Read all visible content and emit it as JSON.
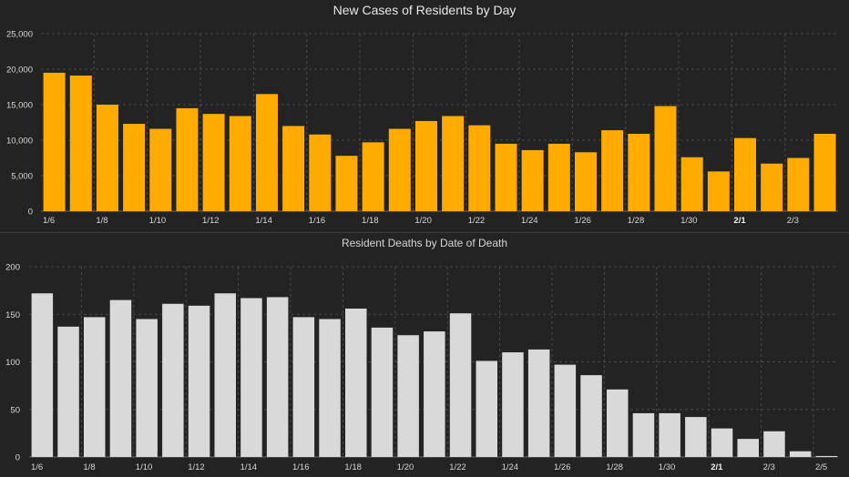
{
  "chart_data": [
    {
      "type": "bar",
      "title": "New Cases of Residents by Day",
      "color": "#ffab00",
      "grid": true,
      "ylim": [
        0,
        25000
      ],
      "y_ticks": [
        0,
        5000,
        10000,
        15000,
        20000,
        25000
      ],
      "y_tick_labels": [
        "0",
        "5,000",
        "10,000",
        "15,000",
        "20,000",
        "25,000"
      ],
      "categories": [
        "1/6",
        "1/7",
        "1/8",
        "1/9",
        "1/10",
        "1/11",
        "1/12",
        "1/13",
        "1/14",
        "1/15",
        "1/16",
        "1/17",
        "1/18",
        "1/19",
        "1/20",
        "1/21",
        "1/22",
        "1/23",
        "1/24",
        "1/25",
        "1/26",
        "1/27",
        "1/28",
        "1/29",
        "1/30",
        "1/31",
        "2/1",
        "2/2",
        "2/3",
        "2/4"
      ],
      "values": [
        19500,
        19100,
        15000,
        12300,
        11600,
        14500,
        13700,
        13400,
        16500,
        12000,
        10800,
        7800,
        9700,
        11600,
        12700,
        13400,
        12100,
        9500,
        8600,
        9500,
        8300,
        11400,
        10900,
        14800,
        7600,
        5600,
        10300,
        6700,
        7500,
        10900
      ],
      "x_tick_labels": [
        {
          "label": "1/6",
          "index": 0,
          "bold": false
        },
        {
          "label": "1/8",
          "index": 2,
          "bold": false
        },
        {
          "label": "1/10",
          "index": 4,
          "bold": false
        },
        {
          "label": "1/12",
          "index": 6,
          "bold": false
        },
        {
          "label": "1/14",
          "index": 8,
          "bold": false
        },
        {
          "label": "1/16",
          "index": 10,
          "bold": false
        },
        {
          "label": "1/18",
          "index": 12,
          "bold": false
        },
        {
          "label": "1/20",
          "index": 14,
          "bold": false
        },
        {
          "label": "1/22",
          "index": 16,
          "bold": false
        },
        {
          "label": "1/24",
          "index": 18,
          "bold": false
        },
        {
          "label": "1/26",
          "index": 20,
          "bold": false
        },
        {
          "label": "1/28",
          "index": 22,
          "bold": false
        },
        {
          "label": "1/30",
          "index": 24,
          "bold": false
        },
        {
          "label": "2/1",
          "index": 26,
          "bold": true
        },
        {
          "label": "2/3",
          "index": 28,
          "bold": false
        }
      ]
    },
    {
      "type": "bar",
      "title": "Resident Deaths by Date of Death",
      "color": "#d9d9d9",
      "grid": true,
      "ylim": [
        0,
        200
      ],
      "y_ticks": [
        0,
        50,
        100,
        150,
        200
      ],
      "y_tick_labels": [
        "0",
        "50",
        "100",
        "150",
        "200"
      ],
      "categories": [
        "1/6",
        "1/7",
        "1/8",
        "1/9",
        "1/10",
        "1/11",
        "1/12",
        "1/13",
        "1/14",
        "1/15",
        "1/16",
        "1/17",
        "1/18",
        "1/19",
        "1/20",
        "1/21",
        "1/22",
        "1/23",
        "1/24",
        "1/25",
        "1/26",
        "1/27",
        "1/28",
        "1/29",
        "1/30",
        "1/31",
        "2/1",
        "2/2",
        "2/3",
        "2/4",
        "2/5"
      ],
      "values": [
        172,
        137,
        147,
        165,
        145,
        161,
        159,
        172,
        167,
        168,
        147,
        145,
        156,
        136,
        128,
        132,
        151,
        101,
        110,
        113,
        97,
        86,
        71,
        46,
        46,
        42,
        30,
        19,
        27,
        6,
        1
      ],
      "x_tick_labels": [
        {
          "label": "1/6",
          "index": 0,
          "bold": false
        },
        {
          "label": "1/8",
          "index": 2,
          "bold": false
        },
        {
          "label": "1/10",
          "index": 4,
          "bold": false
        },
        {
          "label": "1/12",
          "index": 6,
          "bold": false
        },
        {
          "label": "1/14",
          "index": 8,
          "bold": false
        },
        {
          "label": "1/16",
          "index": 10,
          "bold": false
        },
        {
          "label": "1/18",
          "index": 12,
          "bold": false
        },
        {
          "label": "1/20",
          "index": 14,
          "bold": false
        },
        {
          "label": "1/22",
          "index": 16,
          "bold": false
        },
        {
          "label": "1/24",
          "index": 18,
          "bold": false
        },
        {
          "label": "1/26",
          "index": 20,
          "bold": false
        },
        {
          "label": "1/28",
          "index": 22,
          "bold": false
        },
        {
          "label": "1/30",
          "index": 24,
          "bold": false
        },
        {
          "label": "2/1",
          "index": 26,
          "bold": true
        },
        {
          "label": "2/3",
          "index": 28,
          "bold": false
        },
        {
          "label": "2/5",
          "index": 30,
          "bold": false
        }
      ]
    }
  ]
}
